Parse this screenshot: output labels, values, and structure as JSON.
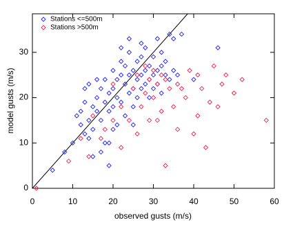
{
  "chart_data": {
    "type": "scatter",
    "xlabel": "observed gusts (m/s)",
    "ylabel": "model gusts (m/s)",
    "xlim": [
      0,
      60
    ],
    "ylim": [
      0,
      38.5
    ],
    "xticks": [
      0,
      10,
      20,
      30,
      40,
      50,
      60
    ],
    "yticks": [
      0,
      10,
      20,
      30
    ],
    "legend": "upper left",
    "series": [
      {
        "name": "Stations <=500m",
        "color": "#3030f0",
        "x": [
          5,
          8,
          10,
          11,
          12,
          12,
          13,
          13,
          14,
          14,
          15,
          15,
          16,
          16,
          17,
          17,
          18,
          18,
          18,
          19,
          19,
          19,
          20,
          20,
          20,
          21,
          21,
          21,
          22,
          22,
          22,
          23,
          23,
          23,
          24,
          24,
          24,
          25,
          25,
          25,
          26,
          26,
          26,
          27,
          27,
          27,
          28,
          28,
          28,
          29,
          29,
          29,
          30,
          30,
          30,
          31,
          31,
          32,
          32,
          32,
          33,
          33,
          34,
          34,
          35,
          35,
          36,
          37,
          13,
          16,
          19,
          14,
          24,
          22,
          27,
          31,
          40,
          46,
          25,
          20,
          17,
          15
        ],
        "values": [
          4,
          8,
          10,
          16,
          17,
          14,
          12,
          19,
          15,
          23,
          18,
          13,
          20,
          17,
          22,
          15,
          19,
          24,
          10,
          5,
          21,
          17,
          26,
          22,
          18,
          24,
          20,
          14,
          25,
          28,
          19,
          23,
          27,
          16,
          25,
          21,
          30,
          26,
          22,
          18,
          24,
          28,
          20,
          25,
          29,
          22,
          26,
          23,
          31,
          24,
          27,
          20,
          25,
          29,
          22,
          26,
          23,
          27,
          30,
          21,
          25,
          28,
          24,
          34,
          26,
          33,
          25,
          34,
          22,
          24,
          10,
          11,
          33,
          31,
          32,
          33,
          24,
          31,
          14,
          13,
          8,
          7
        ]
      },
      {
        "name": "Stations >500m",
        "color": "#f0305a",
        "x": [
          1,
          9,
          12,
          14,
          15,
          17,
          18,
          20,
          20,
          22,
          22,
          24,
          25,
          26,
          26,
          27,
          28,
          28,
          29,
          29,
          30,
          30,
          31,
          32,
          32,
          33,
          33,
          34,
          35,
          36,
          36,
          38,
          39,
          40,
          41,
          41,
          42,
          44,
          45,
          46,
          47,
          48,
          50,
          52,
          58,
          43,
          37,
          31
        ],
        "values": [
          0,
          6,
          11,
          7,
          16,
          11,
          13,
          15,
          23,
          9,
          18,
          15,
          22,
          12,
          25,
          18,
          27,
          21,
          15,
          24,
          26,
          20,
          23,
          17,
          25,
          5,
          24,
          22,
          18,
          23,
          13,
          20,
          26,
          12,
          25,
          16,
          22,
          19,
          27,
          18,
          23,
          25,
          21,
          24,
          15,
          9,
          22,
          15
        ]
      }
    ]
  }
}
